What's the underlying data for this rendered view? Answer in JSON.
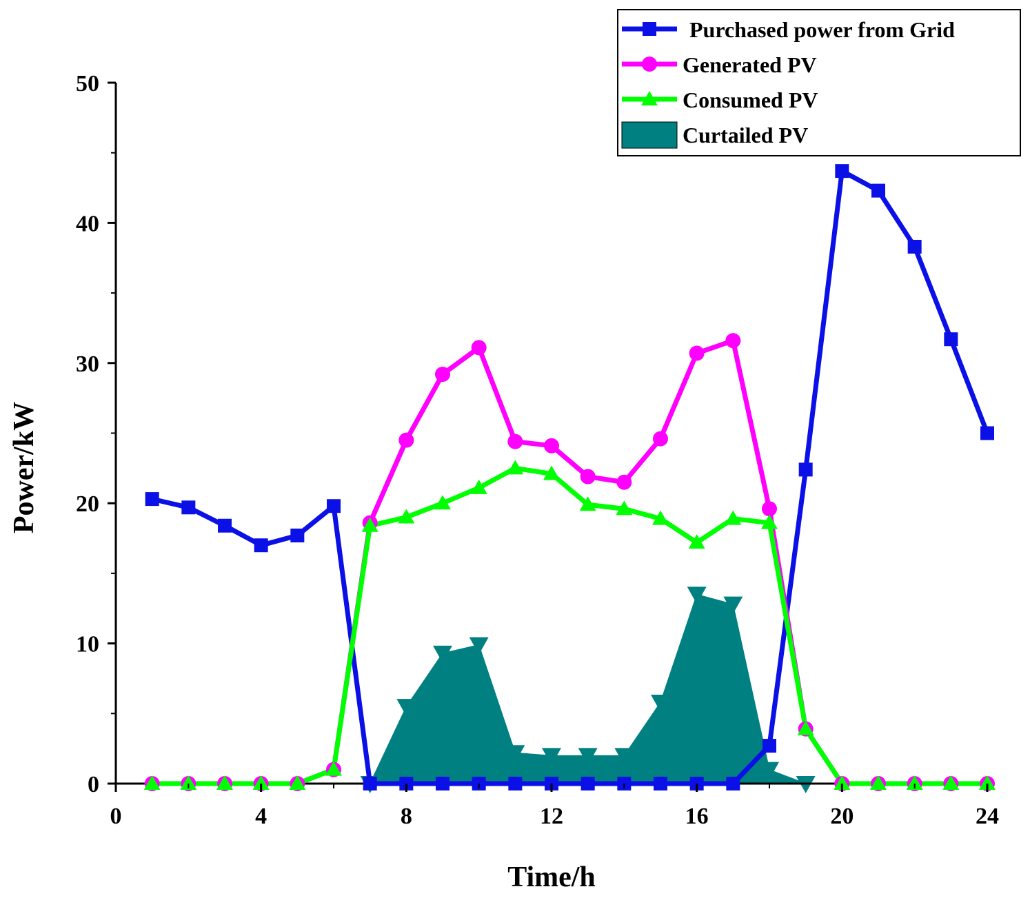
{
  "chart_data": {
    "type": "line",
    "title": "",
    "xlabel": "Time/h",
    "ylabel": "Power/kW",
    "xlim": [
      0,
      24
    ],
    "ylim": [
      0,
      50
    ],
    "xticks": [
      0,
      4,
      8,
      12,
      16,
      20,
      24
    ],
    "yticks": [
      0,
      10,
      20,
      30,
      40,
      50
    ],
    "grid": false,
    "legend_position": "top-right",
    "series": [
      {
        "name": "Purchased power from Grid",
        "kind": "line",
        "marker": "square",
        "color": "#0a10e6",
        "x": [
          1,
          2,
          3,
          4,
          5,
          6,
          7,
          8,
          9,
          10,
          11,
          12,
          13,
          14,
          15,
          16,
          17,
          18,
          19,
          20,
          21,
          22,
          23,
          24
        ],
        "values": [
          20.3,
          19.7,
          18.4,
          17.0,
          17.7,
          19.8,
          0,
          0,
          0,
          0,
          0,
          0,
          0,
          0,
          0,
          0,
          0,
          2.7,
          22.4,
          43.7,
          42.3,
          38.3,
          31.7,
          25.0
        ]
      },
      {
        "name": "Generated PV",
        "kind": "line",
        "marker": "circle",
        "color": "#ff00ff",
        "x": [
          1,
          2,
          3,
          4,
          5,
          6,
          7,
          8,
          9,
          10,
          11,
          12,
          13,
          14,
          15,
          16,
          17,
          18,
          19,
          20,
          21,
          22,
          23,
          24
        ],
        "values": [
          0,
          0,
          0,
          0,
          0,
          1.0,
          18.6,
          24.5,
          29.2,
          31.1,
          24.4,
          24.1,
          21.9,
          21.5,
          24.6,
          30.7,
          31.6,
          19.6,
          3.9,
          0,
          0,
          0,
          0,
          0
        ]
      },
      {
        "name": "Consumed PV",
        "kind": "line",
        "marker": "triangle",
        "color": "#00ff00",
        "x": [
          1,
          2,
          3,
          4,
          5,
          6,
          7,
          8,
          9,
          10,
          11,
          12,
          13,
          14,
          15,
          16,
          17,
          18,
          19,
          20,
          21,
          22,
          23,
          24
        ],
        "values": [
          0,
          0,
          0,
          0,
          0,
          1.0,
          18.4,
          19.0,
          20.0,
          21.1,
          22.5,
          22.1,
          19.9,
          19.6,
          18.9,
          17.2,
          18.9,
          18.6,
          3.9,
          0,
          0,
          0,
          0,
          0
        ]
      },
      {
        "name": "Curtailed PV",
        "kind": "area",
        "marker": "triangle-down",
        "color": "#008080",
        "x": [
          7,
          8,
          9,
          10,
          11,
          12,
          13,
          14,
          15,
          16,
          17,
          18,
          19
        ],
        "values": [
          0,
          5.5,
          9.3,
          9.9,
          2.2,
          2.0,
          2.0,
          2.0,
          5.8,
          13.5,
          12.8,
          1.0,
          0
        ]
      }
    ]
  }
}
